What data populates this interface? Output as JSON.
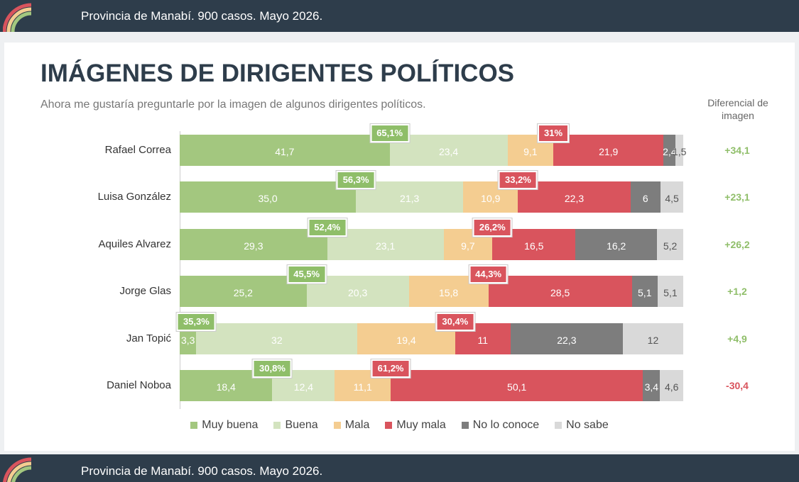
{
  "header": {
    "text": "Provincia de Manabí. 900 casos. Mayo 2026."
  },
  "footer": {
    "text": "Provincia de Manabí. 900 casos. Mayo 2026."
  },
  "chart_data": {
    "type": "stacked_bar_horizontal",
    "title": "IMÁGENES DE DIRIGENTES POLÍTICOS",
    "subtitle": "Ahora me gustaría preguntarle por la imagen de algunos dirigentes políticos.",
    "xlim": [
      0,
      100
    ],
    "categories": [
      "Rafael Correa",
      "Luisa González",
      "Aquiles Alvarez",
      "Jorge Glas",
      "Jan Topić",
      "Daniel Noboa"
    ],
    "series": [
      {
        "name": "Muy buena",
        "color": "#a3c77f",
        "label_color": "#ffffff",
        "values": [
          41.7,
          35.0,
          29.3,
          25.2,
          3.3,
          18.4
        ],
        "value_labels": [
          "41,7",
          "35,0",
          "29,3",
          "25,2",
          "3,3",
          "18,4"
        ]
      },
      {
        "name": "Buena",
        "color": "#d3e3bf",
        "label_color": "#ffffff",
        "values": [
          23.4,
          21.3,
          23.1,
          20.3,
          32,
          12.4
        ],
        "value_labels": [
          "23,4",
          "21,3",
          "23,1",
          "20,3",
          "32",
          "12,4"
        ]
      },
      {
        "name": "Mala",
        "color": "#f4cd91",
        "label_color": "#ffffff",
        "values": [
          9.1,
          10.9,
          9.7,
          15.8,
          19.4,
          11.1
        ],
        "value_labels": [
          "9,1",
          "10,9",
          "9,7",
          "15,8",
          "19,4",
          "11,1"
        ]
      },
      {
        "name": "Muy mala",
        "color": "#d9545d",
        "label_color": "#ffffff",
        "values": [
          21.9,
          22.3,
          16.5,
          28.5,
          11,
          50.1
        ],
        "value_labels": [
          "21,9",
          "22,3",
          "16,5",
          "28,5",
          "11",
          "50,1"
        ]
      },
      {
        "name": "No lo conoce",
        "color": "#7d7d7d",
        "label_color": "#ffffff",
        "values": [
          2.4,
          6,
          16.2,
          5.1,
          22.3,
          3.4
        ],
        "value_labels": [
          "2,4",
          "6",
          "16,2",
          "5,1",
          "22,3",
          "3,4"
        ]
      },
      {
        "name": "No sabe",
        "color": "#d9d9d9",
        "label_color": "#555555",
        "values": [
          1.5,
          4.5,
          5.2,
          5.1,
          12,
          4.6
        ],
        "value_labels": [
          "1,5",
          "4,5",
          "5,2",
          "5,1",
          "12",
          "4,6"
        ]
      }
    ],
    "positive": {
      "color": "#8fbe69",
      "values": [
        65.1,
        56.3,
        52.4,
        45.5,
        35.3,
        30.8
      ],
      "value_labels": [
        "65,1%",
        "56,3%",
        "52,4%",
        "45,5%",
        "35,3%",
        "30,8%"
      ]
    },
    "negative": {
      "color": "#d9545d",
      "values": [
        31,
        33.2,
        26.2,
        44.3,
        30.4,
        61.2
      ],
      "value_labels": [
        "31%",
        "33,2%",
        "26,2%",
        "44,3%",
        "30,4%",
        "61,2%"
      ]
    },
    "difference": {
      "title": "Diferencial de imagen",
      "positive_color": "#8fbe69",
      "negative_color": "#d9545d",
      "values": [
        34.1,
        23.1,
        26.2,
        1.2,
        4.9,
        -30.4
      ],
      "value_labels": [
        "+34,1",
        "+23,1",
        "+26,2",
        "+1,2",
        "+4,9",
        "-30,4"
      ]
    }
  }
}
